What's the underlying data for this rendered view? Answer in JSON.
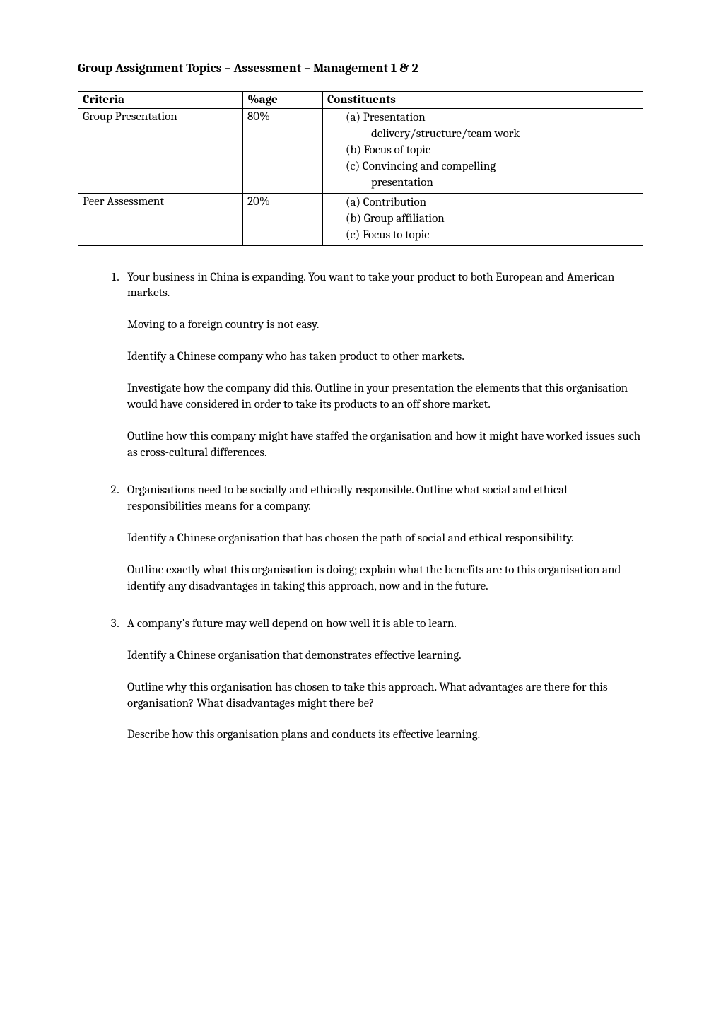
{
  "title": "Group Assignment Topics – Assessment – Management 1 & 2",
  "table": {
    "headers": {
      "criteria": "Criteria",
      "pct": "%age",
      "constituents": "Constituents"
    },
    "rows": [
      {
        "criteria": "Group Presentation",
        "pct": "80%",
        "constituents": [
          {
            "label": "(a) Presentation",
            "indent": 1
          },
          {
            "label": "delivery/structure/team work",
            "indent": 2
          },
          {
            "label": "(b) Focus of topic",
            "indent": 1
          },
          {
            "label": "(c) Convincing and compelling",
            "indent": 1
          },
          {
            "label": "presentation",
            "indent": 2
          }
        ]
      },
      {
        "criteria": "Peer Assessment",
        "pct": "20%",
        "constituents": [
          {
            "label": "(a) Contribution",
            "indent": 1
          },
          {
            "label": "(b) Group affiliation",
            "indent": 1
          },
          {
            "label": "(c) Focus to topic",
            "indent": 1
          }
        ]
      }
    ]
  },
  "topics": [
    {
      "paragraphs": [
        "Your business in China is expanding. You want to take your product to both European and American markets.",
        "Moving to a foreign country is not easy.",
        "Identify a Chinese company who has taken product to other markets.",
        "Investigate how the company did this. Outline in your presentation the elements that this organisation would have considered in order to take its products to an off shore market.",
        "Outline how this company might have staffed the organisation and how it might have worked issues such as cross-cultural differences."
      ]
    },
    {
      "paragraphs": [
        "Organisations need to be socially and ethically responsible. Outline what social and ethical responsibilities means for a company.",
        "Identify a Chinese organisation that has chosen the path of social and ethical responsibility.",
        "Outline exactly what this organisation is doing; explain what the benefits are to this organisation and identify any disadvantages in taking this approach, now and in the future."
      ]
    },
    {
      "paragraphs": [
        "A company's future may well depend on how well it is able to learn.",
        "Identify a Chinese organisation that demonstrates effective learning.",
        "Outline why this organisation has chosen to take this approach. What advantages are there for this organisation? What disadvantages might there be?",
        "Describe how this organisation plans and conducts its effective learning."
      ]
    }
  ]
}
